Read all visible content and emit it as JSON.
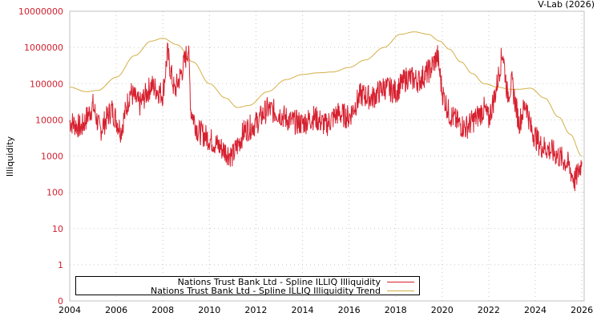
{
  "credit": "V-Lab (2026)",
  "colors": {
    "series": "#d7202f",
    "trend": "#d4b048",
    "tick_y": "#d22030",
    "grid": "#c8c8c8",
    "axis": "#c0c0c0"
  },
  "chart_data": {
    "type": "line",
    "title": "",
    "xlabel": "",
    "ylabel": "Illiquidity",
    "yscale": "log",
    "ylim": [
      0,
      10000000
    ],
    "xlim": [
      2004,
      2026.1
    ],
    "y_ticks": [
      "10000000",
      "1000000",
      "100000",
      "10000",
      "1000",
      "100",
      "10",
      "1",
      "0"
    ],
    "x_ticks": [
      "2004",
      "2006",
      "2008",
      "2010",
      "2012",
      "2014",
      "2016",
      "2018",
      "2020",
      "2022",
      "2024",
      "2026"
    ],
    "grid": true,
    "legend_position": "bottom-left inside",
    "series": [
      {
        "name": "Nations Trust Bank Ltd - Spline ILLIQ Illiquidity",
        "color": "#d7202f",
        "x": [
          2004.0,
          2004.5,
          2005.0,
          2005.3,
          2005.8,
          2006.2,
          2006.6,
          2007.0,
          2007.5,
          2008.0,
          2008.2,
          2008.5,
          2008.8,
          2009.1,
          2009.2,
          2009.5,
          2010.0,
          2010.6,
          2011.0,
          2011.5,
          2012.0,
          2012.5,
          2013.0,
          2013.5,
          2014.0,
          2014.5,
          2015.0,
          2015.5,
          2016.0,
          2016.5,
          2017.0,
          2017.5,
          2018.0,
          2018.5,
          2019.0,
          2019.5,
          2019.8,
          2020.0,
          2020.3,
          2020.7,
          2021.0,
          2021.5,
          2021.8,
          2022.0,
          2022.3,
          2022.6,
          2022.8,
          2023.0,
          2023.3,
          2023.6,
          2023.8,
          2024.2,
          2024.6,
          2025.0,
          2025.4,
          2025.7,
          2026.0
        ],
        "values": [
          9000,
          6000,
          25000,
          5000,
          20000,
          5000,
          60000,
          25000,
          90000,
          50000,
          700000,
          60000,
          200000,
          1000000,
          20000,
          5000,
          3000,
          1500,
          1000,
          5000,
          8000,
          20000,
          15000,
          9000,
          8000,
          12000,
          7000,
          15000,
          12000,
          50000,
          40000,
          80000,
          60000,
          150000,
          120000,
          250000,
          600000,
          60000,
          15000,
          8000,
          6000,
          12000,
          20000,
          10000,
          60000,
          800000,
          50000,
          100000,
          8000,
          30000,
          6000,
          2000,
          1500,
          1000,
          600,
          200,
          700
        ]
      },
      {
        "name": "Nations Trust Bank Ltd - Spline ILLIQ Illiquidity Trend",
        "color": "#d4b048",
        "x": [
          2004.0,
          2004.7,
          2005.2,
          2006.0,
          2006.8,
          2007.5,
          2008.0,
          2008.6,
          2009.3,
          2010.0,
          2010.7,
          2011.2,
          2011.7,
          2012.5,
          2013.3,
          2014.0,
          2014.7,
          2015.3,
          2016.0,
          2016.7,
          2017.5,
          2018.2,
          2018.8,
          2019.4,
          2019.9,
          2020.3,
          2020.8,
          2021.3,
          2021.8,
          2022.4,
          2022.9,
          2023.3,
          2023.8,
          2024.4,
          2025.0,
          2025.5,
          2026.0
        ],
        "values": [
          80000,
          60000,
          65000,
          150000,
          600000,
          1500000,
          1800000,
          1200000,
          400000,
          100000,
          40000,
          22000,
          25000,
          60000,
          130000,
          180000,
          200000,
          210000,
          280000,
          450000,
          1000000,
          2300000,
          2700000,
          2300000,
          1500000,
          900000,
          400000,
          190000,
          100000,
          80000,
          70000,
          70000,
          75000,
          40000,
          12000,
          4000,
          1000
        ]
      }
    ]
  }
}
